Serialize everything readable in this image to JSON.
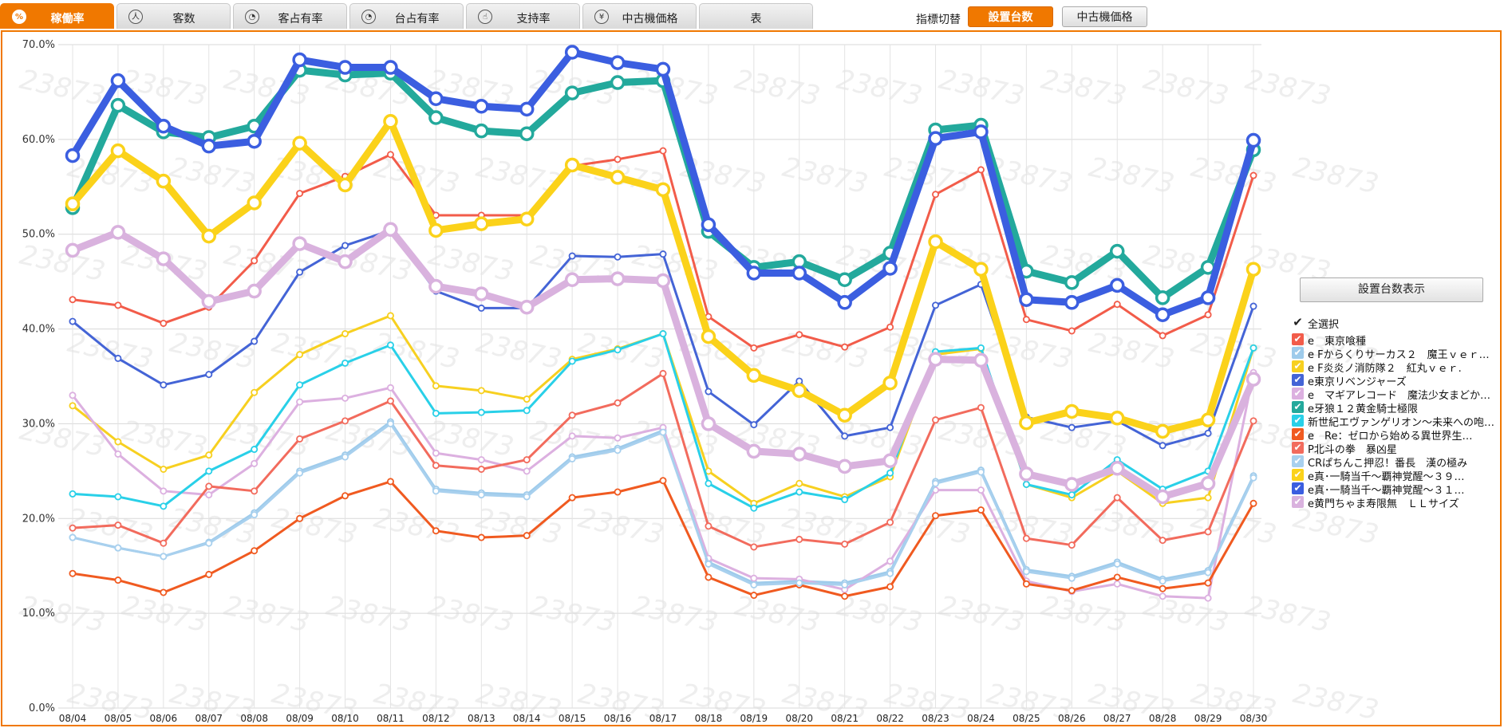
{
  "tabs": [
    {
      "label": "稼働率",
      "icon": "percent-icon",
      "glyph": "%",
      "active": true
    },
    {
      "label": "客数",
      "icon": "people-icon",
      "glyph": "人"
    },
    {
      "label": "客占有率",
      "icon": "pie-chart-icon",
      "glyph": "◔"
    },
    {
      "label": "台占有率",
      "icon": "pie-chart-icon",
      "glyph": "◔"
    },
    {
      "label": "支持率",
      "icon": "hand-pointer-icon",
      "glyph": "☝"
    },
    {
      "label": "中古機価格",
      "icon": "yen-icon",
      "glyph": "¥"
    },
    {
      "label": "表",
      "icon": "",
      "glyph": ""
    }
  ],
  "switcher": {
    "label": "指標切替",
    "options": [
      "設置台数",
      "中古機価格"
    ],
    "selected": "設置台数"
  },
  "count_button": "設置台数表示",
  "watermark": "23873",
  "legend": {
    "select_all": "全選択",
    "items": [
      "e　東京喰種",
      "e Fからくりサーカス２　魔王ｖｅｒ…",
      "e F炎炎ノ消防隊２　紅丸ｖｅｒ.",
      "e東京リベンジャーズ",
      "e　マギアレコード　魔法少女まどか…",
      "e牙狼１２黄金騎士極限",
      "新世紀エヴァンゲリオン～未来への咆…",
      "e　Re：ゼロから始める異世界生…",
      "P北斗の拳　暴凶星",
      "CRぱちんこ押忍！番長　漢の極み",
      "e真･一騎当千～覇神覚醒～３９…",
      "e真･一騎当千～覇神覚醒～３１…",
      "e黄門ちゃま寿限無　ＬＬサイズ"
    ]
  },
  "chart_data": {
    "type": "line",
    "ylim": [
      0,
      70
    ],
    "yticks": [
      "0.0%",
      "10.0%",
      "20.0%",
      "30.0%",
      "40.0%",
      "50.0%",
      "60.0%",
      "70.0%"
    ],
    "grid": true,
    "legend_position": "right",
    "categories": [
      "08/04",
      "08/05",
      "08/06",
      "08/07",
      "08/08",
      "08/09",
      "08/10",
      "08/11",
      "08/12",
      "08/13",
      "08/14",
      "08/15",
      "08/16",
      "08/17",
      "08/18",
      "08/19",
      "08/20",
      "08/21",
      "08/22",
      "08/23",
      "08/24",
      "08/25",
      "08/26",
      "08/27",
      "08/28",
      "08/29",
      "08/30"
    ],
    "series": [
      {
        "name": "e　東京喰種",
        "color": "#f25c4a",
        "thick": false,
        "values": [
          43.1,
          42.5,
          40.6,
          42.3,
          47.2,
          54.3,
          56.1,
          58.4,
          52.0,
          52.0,
          52.0,
          57.2,
          57.9,
          58.8,
          41.3,
          38.0,
          39.4,
          38.1,
          40.2,
          54.2,
          56.8,
          41.0,
          39.8,
          42.6,
          39.3,
          41.5,
          56.2
        ]
      },
      {
        "name": "e Fからくりサーカス２　魔王ｖｅｒ…",
        "color": "#9ecbeb",
        "thick": false,
        "values": [
          18.0,
          16.9,
          16.0,
          17.5,
          20.6,
          25.0,
          26.7,
          30.2,
          23.1,
          22.7,
          22.5,
          26.5,
          27.4,
          29.3,
          15.4,
          13.2,
          13.4,
          13.2,
          14.4,
          23.9,
          25.1,
          14.6,
          13.9,
          15.4,
          13.6,
          14.5,
          24.5
        ]
      },
      {
        "name": "e F炎炎ノ消防隊２　紅丸ｖｅｒ.",
        "color": "#f7d020",
        "thick": false,
        "values": [
          31.9,
          28.1,
          25.2,
          26.7,
          33.3,
          37.3,
          39.5,
          41.4,
          34.0,
          33.5,
          32.6,
          36.8,
          37.9,
          39.5,
          25.0,
          21.6,
          23.7,
          22.3,
          24.4,
          37.3,
          37.9,
          23.6,
          22.2,
          25.0,
          21.6,
          22.2,
          38.0
        ]
      },
      {
        "name": "e東京リベンジャーズ",
        "color": "#4464d6",
        "thick": false,
        "values": [
          40.8,
          36.9,
          34.1,
          35.2,
          38.7,
          46.0,
          48.8,
          50.4,
          44.0,
          42.2,
          42.2,
          47.7,
          47.6,
          47.9,
          33.4,
          29.9,
          34.5,
          28.7,
          29.6,
          42.5,
          44.7,
          30.7,
          29.6,
          30.3,
          27.7,
          29.0,
          42.4
        ]
      },
      {
        "name": "e　マギアレコード　魔法少女まどか…",
        "color": "#dcb0e0",
        "thick": false,
        "values": [
          33.0,
          26.8,
          22.9,
          22.5,
          25.8,
          32.3,
          32.7,
          33.8,
          26.9,
          26.2,
          25.0,
          28.7,
          28.5,
          29.6,
          15.8,
          13.7,
          13.6,
          12.5,
          15.5,
          23.0,
          23.0,
          13.4,
          12.3,
          13.1,
          11.8,
          11.6,
          35.4
        ]
      },
      {
        "name": "e牙狼１２黄金騎士極限",
        "color": "#23a99c",
        "thick": true,
        "values": [
          52.8,
          63.6,
          60.8,
          60.2,
          61.4,
          67.3,
          66.8,
          67.0,
          62.3,
          60.9,
          60.6,
          64.9,
          66.0,
          66.2,
          50.3,
          46.5,
          47.1,
          45.2,
          48.0,
          61.0,
          61.5,
          46.1,
          44.9,
          48.2,
          43.3,
          46.5,
          58.9
        ]
      },
      {
        "name": "新世紀エヴァンゲリオン～未来への咆…",
        "color": "#29d0e8",
        "thick": false,
        "values": [
          22.6,
          22.3,
          21.3,
          25.0,
          27.3,
          34.1,
          36.4,
          38.3,
          31.1,
          31.2,
          31.4,
          36.6,
          37.8,
          39.5,
          23.7,
          21.1,
          22.8,
          22.0,
          24.8,
          37.6,
          38.0,
          23.6,
          22.5,
          26.2,
          23.1,
          25.0,
          38.0
        ]
      },
      {
        "name": "e　Re：ゼロから始める異世界生…",
        "color": "#f05a20",
        "thick": false,
        "values": [
          14.2,
          13.5,
          12.2,
          14.1,
          16.6,
          20.0,
          22.4,
          23.9,
          18.7,
          18.0,
          18.2,
          22.2,
          22.8,
          24.0,
          13.8,
          11.9,
          13.0,
          11.8,
          12.8,
          20.3,
          20.9,
          13.1,
          12.4,
          13.8,
          12.6,
          13.2,
          21.6
        ]
      },
      {
        "name": "P北斗の拳　暴凶星",
        "color": "#f26b5d",
        "thick": false,
        "values": [
          19.0,
          19.3,
          17.4,
          23.4,
          22.9,
          28.4,
          30.3,
          32.4,
          25.6,
          25.2,
          26.2,
          30.9,
          32.2,
          35.3,
          19.2,
          17.0,
          17.8,
          17.3,
          19.6,
          30.4,
          31.7,
          17.9,
          17.2,
          22.2,
          17.7,
          18.6,
          30.3
        ]
      },
      {
        "name": "CRぱちんこ押忍！番長　漢の極み",
        "color": "#a8d0ee",
        "thick": false,
        "values": [
          18.0,
          16.9,
          16.0,
          17.4,
          20.4,
          24.8,
          26.5,
          30.0,
          22.9,
          22.5,
          22.3,
          26.3,
          27.2,
          29.1,
          15.2,
          13.0,
          13.2,
          13.0,
          14.2,
          23.7,
          24.9,
          14.4,
          13.7,
          15.2,
          13.4,
          14.3,
          24.3
        ]
      },
      {
        "name": "e真･一騎当千～覇神覚醒～３９…",
        "color": "#fbd21a",
        "thick": true,
        "values": [
          53.2,
          58.8,
          55.6,
          49.8,
          53.3,
          59.6,
          55.2,
          61.9,
          50.4,
          51.1,
          51.6,
          57.3,
          56.0,
          54.7,
          39.2,
          35.1,
          33.5,
          30.9,
          34.3,
          49.2,
          46.3,
          30.1,
          31.3,
          30.6,
          29.2,
          30.4,
          46.3
        ]
      },
      {
        "name": "e真･一騎当千～覇神覚醒～３１…",
        "color": "#3b5ee0",
        "thick": true,
        "values": [
          58.3,
          66.2,
          61.4,
          59.3,
          59.8,
          68.4,
          67.6,
          67.6,
          64.3,
          63.5,
          63.2,
          69.2,
          68.1,
          67.4,
          51.0,
          45.9,
          45.9,
          42.8,
          46.4,
          60.1,
          60.8,
          43.1,
          42.8,
          44.6,
          41.5,
          43.3,
          59.9
        ]
      },
      {
        "name": "e黄門ちゃま寿限無　ＬＬサイズ",
        "color": "#d9b2de",
        "thick": true,
        "values": [
          48.3,
          50.2,
          47.4,
          42.9,
          44.0,
          49.0,
          47.1,
          50.5,
          44.5,
          43.7,
          42.3,
          45.2,
          45.3,
          45.1,
          30.0,
          27.1,
          26.8,
          25.5,
          26.1,
          36.8,
          36.7,
          24.7,
          23.6,
          25.3,
          22.3,
          23.7,
          34.7
        ]
      }
    ]
  }
}
